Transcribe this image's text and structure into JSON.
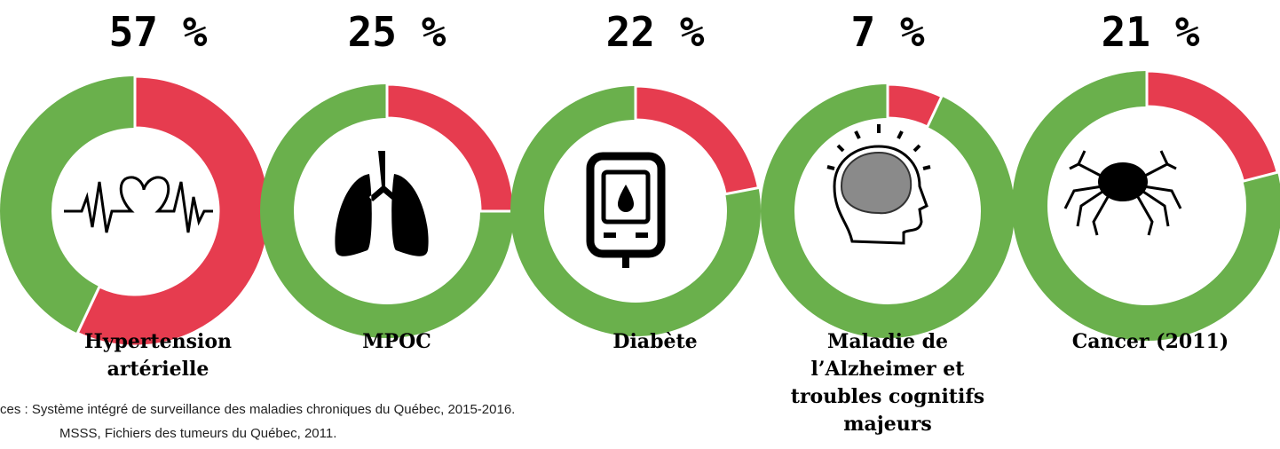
{
  "chart_data": [
    {
      "type": "donut",
      "label": "Hypertension artérielle",
      "values": [
        57
      ],
      "value_labels": [
        "57 %"
      ],
      "color": "#e63c4f",
      "track_color": "#6ab04c"
    },
    {
      "type": "donut",
      "label": "MPOC",
      "values": [
        25
      ],
      "value_labels": [
        "25 %"
      ],
      "color": "#e63c4f",
      "track_color": "#6ab04c"
    },
    {
      "type": "donut",
      "label": "Diabète",
      "values": [
        22
      ],
      "value_labels": [
        "22 %"
      ],
      "color": "#e63c4f",
      "track_color": "#6ab04c"
    },
    {
      "type": "donut",
      "label": "Maladie de l’Alzheimer et troubles cognitifs majeurs",
      "values": [
        7
      ],
      "value_labels": [
        "7 %"
      ],
      "color": "#e63c4f",
      "track_color": "#6ab04c"
    },
    {
      "type": "donut",
      "label": "Cancer (2011)",
      "values": [
        21
      ],
      "value_labels": [
        "21 %"
      ],
      "color": "#e63c4f",
      "track_color": "#6ab04c"
    }
  ],
  "source_lines": [
    "ces : Système intégré de surveillance des maladies chroniques du Québec, 2015-2016.",
    "MSSS, Fichiers des tumeurs du Québec, 2011."
  ]
}
